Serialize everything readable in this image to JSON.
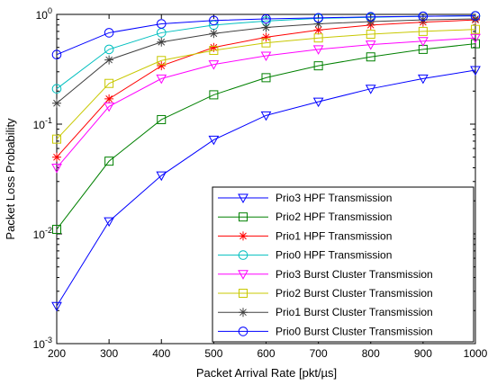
{
  "chart_data": {
    "type": "line",
    "title": "",
    "xlabel": "Packet Arrival Rate [pkt/µs]",
    "ylabel": "Packet Loss Probability",
    "x": [
      200,
      300,
      400,
      500,
      600,
      700,
      800,
      900,
      1000
    ],
    "xlim": [
      200,
      1000
    ],
    "ylim": [
      0.001,
      1
    ],
    "yscale": "log",
    "x_ticks": [
      200,
      300,
      400,
      500,
      600,
      700,
      800,
      900,
      1000
    ],
    "y_ticks": [
      {
        "value": 0.001,
        "base": "10",
        "exp": "-3"
      },
      {
        "value": 0.01,
        "base": "10",
        "exp": "-2"
      },
      {
        "value": 0.1,
        "base": "10",
        "exp": "-1"
      },
      {
        "value": 1,
        "base": "10",
        "exp": "0"
      }
    ],
    "grid": false,
    "legend_position": "bottom-right",
    "series": [
      {
        "name": "Prio3 HPF Transmission",
        "color": "#0000ff",
        "marker": "triangle-down",
        "values": [
          0.0022,
          0.013,
          0.034,
          0.072,
          0.12,
          0.16,
          0.21,
          0.26,
          0.31
        ]
      },
      {
        "name": "Prio2 HPF Transmission",
        "color": "#008000",
        "marker": "square",
        "values": [
          0.011,
          0.046,
          0.11,
          0.185,
          0.265,
          0.34,
          0.41,
          0.48,
          0.54
        ]
      },
      {
        "name": "Prio1 HPF Transmission",
        "color": "#ff0000",
        "marker": "star",
        "values": [
          0.05,
          0.17,
          0.34,
          0.5,
          0.62,
          0.72,
          0.8,
          0.85,
          0.89
        ]
      },
      {
        "name": "Prio0 HPF Transmission",
        "color": "#00bfbf",
        "marker": "circle",
        "values": [
          0.21,
          0.48,
          0.68,
          0.8,
          0.87,
          0.92,
          0.94,
          0.96,
          0.97
        ]
      },
      {
        "name": "Prio3 Burst Cluster Transmission",
        "color": "#ff00ff",
        "marker": "triangle-down",
        "values": [
          0.04,
          0.145,
          0.26,
          0.35,
          0.42,
          0.48,
          0.53,
          0.57,
          0.61
        ]
      },
      {
        "name": "Prio2 Burst Cluster Transmission",
        "color": "#c8c800",
        "marker": "square",
        "values": [
          0.073,
          0.235,
          0.38,
          0.47,
          0.55,
          0.61,
          0.66,
          0.7,
          0.73
        ]
      },
      {
        "name": "Prio1 Burst Cluster Transmission",
        "color": "#404040",
        "marker": "star",
        "values": [
          0.155,
          0.385,
          0.56,
          0.67,
          0.76,
          0.82,
          0.86,
          0.89,
          0.91
        ]
      },
      {
        "name": "Prio0 Burst Cluster Transmission",
        "color": "#0000ff",
        "marker": "circle",
        "values": [
          0.43,
          0.68,
          0.82,
          0.88,
          0.91,
          0.93,
          0.95,
          0.96,
          0.97
        ]
      }
    ]
  }
}
